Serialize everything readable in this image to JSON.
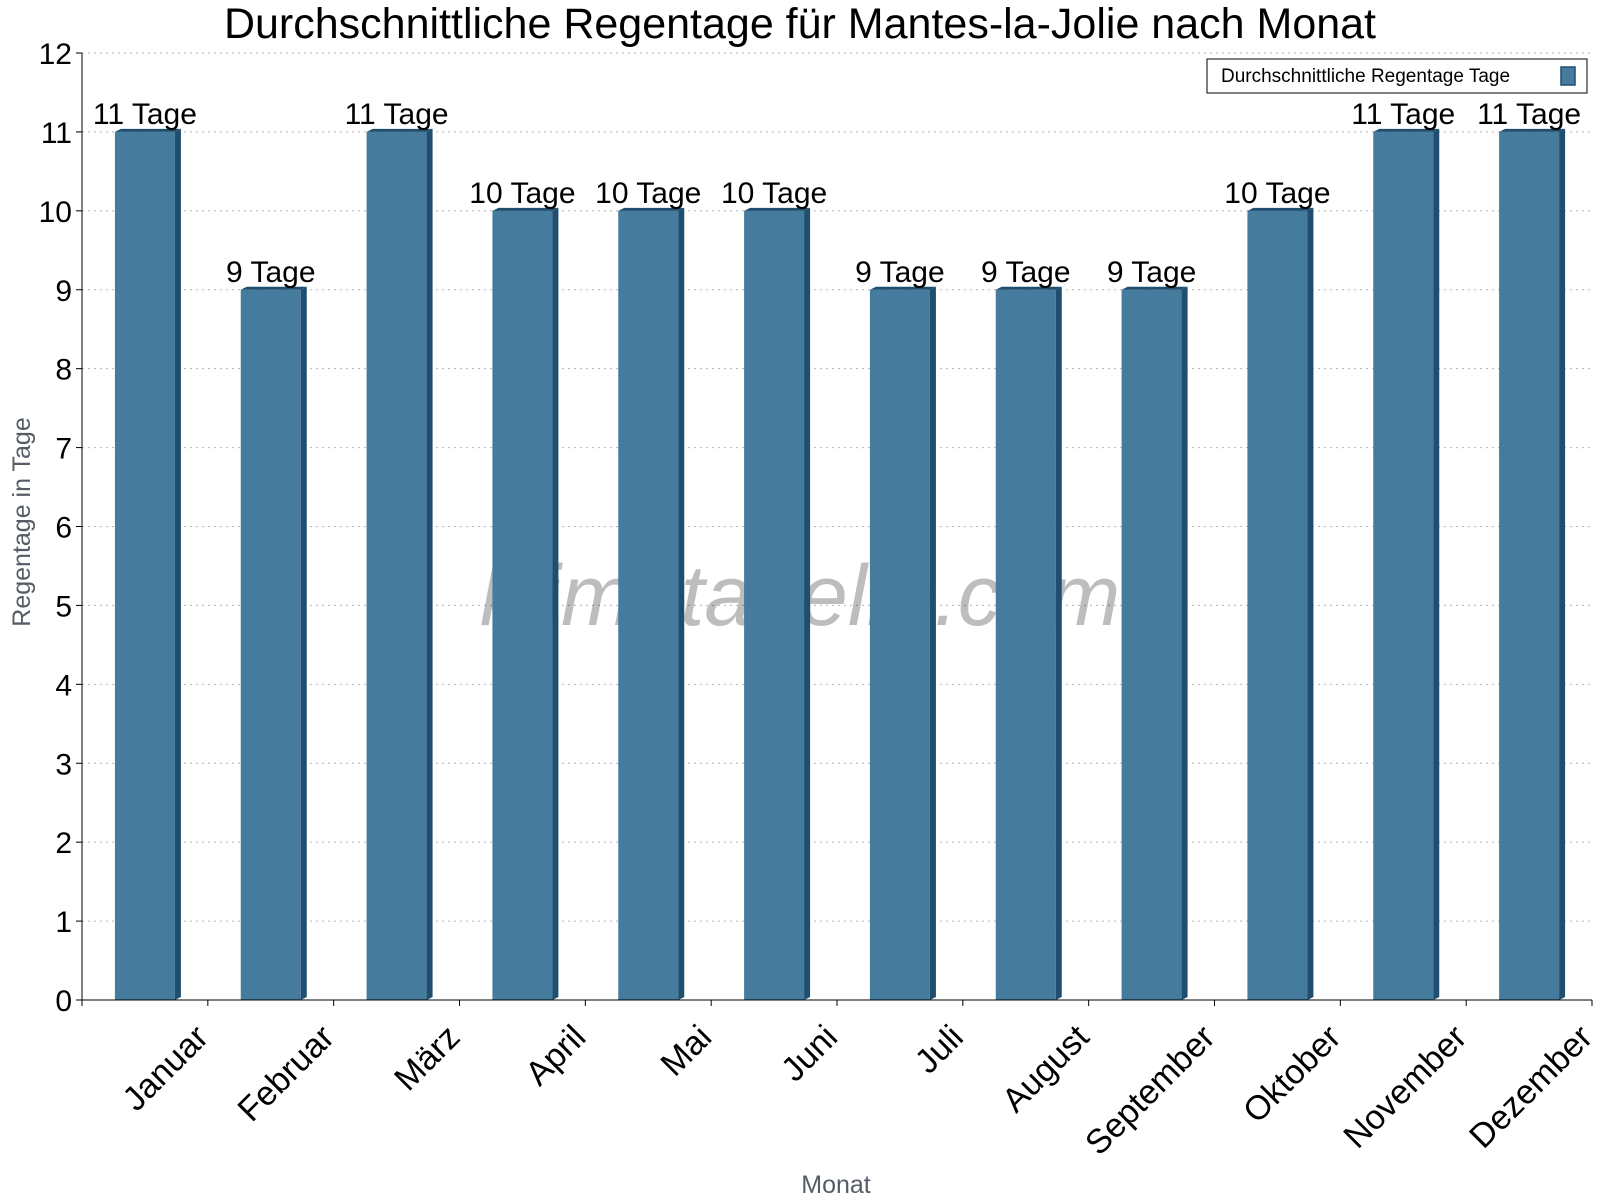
{
  "chart_data": {
    "type": "bar",
    "title": "Durchschnittliche Regentage für Mantes-la-Jolie nach Monat",
    "xlabel": "Monat",
    "ylabel": "Regentage in Tage",
    "categories": [
      "Januar",
      "Februar",
      "März",
      "April",
      "Mai",
      "Juni",
      "Juli",
      "August",
      "September",
      "Oktober",
      "November",
      "Dezember"
    ],
    "series": [
      {
        "name": "Durchschnittliche Regentage Tage",
        "values": [
          11,
          9,
          11,
          10,
          10,
          10,
          9,
          9,
          9,
          10,
          11,
          11
        ],
        "labels": [
          "11 Tage",
          "9 Tage",
          "11 Tage",
          "10 Tage",
          "10 Tage",
          "10 Tage",
          "9 Tage",
          "9 Tage",
          "9 Tage",
          "10 Tage",
          "11 Tage",
          "11 Tage"
        ],
        "color": "#457b9d",
        "shade_color": "#1f4e6e"
      }
    ],
    "ylim": [
      0,
      12
    ],
    "yticks": [
      0,
      1,
      2,
      3,
      4,
      5,
      6,
      7,
      8,
      9,
      10,
      11,
      12
    ],
    "grid": true,
    "legend_position": "top-right",
    "watermark": "klimatabelle.com"
  }
}
